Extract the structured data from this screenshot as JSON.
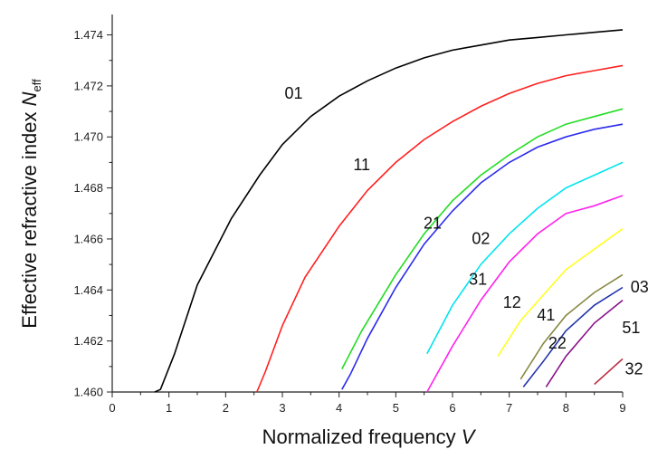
{
  "chart_data": {
    "type": "line",
    "title": "",
    "xlabel": {
      "main": "Normalized frequency ",
      "var": "V"
    },
    "ylabel": {
      "main": "Effective refractive index ",
      "var": "N",
      "sub": "eff"
    },
    "xlim": [
      0,
      9
    ],
    "ylim": [
      1.46,
      1.4748
    ],
    "x_ticks": [
      "0",
      "1",
      "2",
      "3",
      "4",
      "5",
      "6",
      "7",
      "8",
      "9"
    ],
    "y_ticks": [
      "1.460",
      "1.462",
      "1.464",
      "1.466",
      "1.468",
      "1.470",
      "1.472",
      "1.474"
    ],
    "grid": false,
    "legend": "none",
    "series": [
      {
        "name": "01",
        "color": "#000000",
        "label_pos": [
          3.2,
          1.4715
        ],
        "points": [
          [
            0.75,
            1.46
          ],
          [
            0.85,
            1.4601
          ],
          [
            1.1,
            1.4615
          ],
          [
            1.5,
            1.4642
          ],
          [
            2.1,
            1.4668
          ],
          [
            2.6,
            1.4685
          ],
          [
            3.0,
            1.4697
          ],
          [
            3.5,
            1.4708
          ],
          [
            4.0,
            1.4716
          ],
          [
            4.5,
            1.4722
          ],
          [
            5.0,
            1.4727
          ],
          [
            5.5,
            1.4731
          ],
          [
            6.0,
            1.4734
          ],
          [
            6.5,
            1.4736
          ],
          [
            7.0,
            1.4738
          ],
          [
            7.5,
            1.4739
          ],
          [
            8.0,
            1.474
          ],
          [
            8.5,
            1.4741
          ],
          [
            9.0,
            1.4742
          ]
        ]
      },
      {
        "name": "11",
        "color": "#ff2020",
        "label_pos": [
          4.4,
          1.4687
        ],
        "points": [
          [
            2.55,
            1.46
          ],
          [
            2.7,
            1.4608
          ],
          [
            3.0,
            1.4626
          ],
          [
            3.4,
            1.4645
          ],
          [
            4.0,
            1.4665
          ],
          [
            4.5,
            1.4679
          ],
          [
            5.0,
            1.469
          ],
          [
            5.5,
            1.4699
          ],
          [
            6.0,
            1.4706
          ],
          [
            6.5,
            1.4712
          ],
          [
            7.0,
            1.4717
          ],
          [
            7.5,
            1.4721
          ],
          [
            8.0,
            1.4724
          ],
          [
            8.5,
            1.4726
          ],
          [
            9.0,
            1.4728
          ]
        ]
      },
      {
        "name": "21",
        "color": "#22dd22",
        "label_pos": [
          5.65,
          1.4664
        ],
        "points": [
          [
            4.05,
            1.4609
          ],
          [
            4.4,
            1.4624
          ],
          [
            5.0,
            1.4646
          ],
          [
            5.5,
            1.4662
          ],
          [
            6.0,
            1.4675
          ],
          [
            6.5,
            1.4685
          ],
          [
            7.0,
            1.4693
          ],
          [
            7.5,
            1.47
          ],
          [
            8.0,
            1.4705
          ],
          [
            8.5,
            1.4708
          ],
          [
            9.0,
            1.4711
          ]
        ]
      },
      {
        "name": "02",
        "color": "#2b2bee",
        "label_pos": [
          6.5,
          1.4658
        ],
        "points": [
          [
            4.05,
            1.4601
          ],
          [
            4.2,
            1.4607
          ],
          [
            4.5,
            1.4621
          ],
          [
            5.0,
            1.4641
          ],
          [
            5.5,
            1.4658
          ],
          [
            6.0,
            1.4671
          ],
          [
            6.5,
            1.4682
          ],
          [
            7.0,
            1.469
          ],
          [
            7.5,
            1.4696
          ],
          [
            8.0,
            1.47
          ],
          [
            8.5,
            1.4703
          ],
          [
            9.0,
            1.4705
          ]
        ]
      },
      {
        "name": "31",
        "color": "#00e5ee",
        "label_pos": [
          6.45,
          1.4642
        ],
        "points": [
          [
            5.55,
            1.4615
          ],
          [
            6.0,
            1.4634
          ],
          [
            6.5,
            1.465
          ],
          [
            7.0,
            1.4662
          ],
          [
            7.5,
            1.4672
          ],
          [
            8.0,
            1.468
          ],
          [
            8.5,
            1.4685
          ],
          [
            9.0,
            1.469
          ]
        ]
      },
      {
        "name": "12",
        "color": "#ff22ee",
        "label_pos": [
          7.05,
          1.4633
        ],
        "points": [
          [
            5.55,
            1.46
          ],
          [
            6.0,
            1.4618
          ],
          [
            6.5,
            1.4636
          ],
          [
            7.0,
            1.4651
          ],
          [
            7.5,
            1.4662
          ],
          [
            8.0,
            1.467
          ],
          [
            8.5,
            1.4673
          ],
          [
            9.0,
            1.4677
          ]
        ]
      },
      {
        "name": "41",
        "color": "#ffff22",
        "label_pos": [
          7.65,
          1.4628
        ],
        "points": [
          [
            6.8,
            1.4614
          ],
          [
            7.2,
            1.4628
          ],
          [
            7.6,
            1.4638
          ],
          [
            8.0,
            1.4648
          ],
          [
            8.5,
            1.4656
          ],
          [
            9.0,
            1.4664
          ]
        ]
      },
      {
        "name": "22",
        "color": "#888844",
        "label_pos": [
          7.85,
          1.4617
        ],
        "points": [
          [
            7.2,
            1.4605
          ],
          [
            7.6,
            1.4619
          ],
          [
            8.0,
            1.463
          ],
          [
            8.5,
            1.4639
          ],
          [
            9.0,
            1.4646
          ]
        ]
      },
      {
        "name": "03",
        "color": "#2233aa",
        "label_pos": [
          9.3,
          1.4639
        ],
        "points": [
          [
            7.25,
            1.4602
          ],
          [
            7.6,
            1.4612
          ],
          [
            8.0,
            1.4624
          ],
          [
            8.5,
            1.4634
          ],
          [
            9.0,
            1.4641
          ]
        ]
      },
      {
        "name": "51",
        "color": "#881188",
        "label_pos": [
          9.15,
          1.4623
        ],
        "points": [
          [
            7.65,
            1.4602
          ],
          [
            8.0,
            1.4614
          ],
          [
            8.5,
            1.4627
          ],
          [
            9.0,
            1.4636
          ]
        ]
      },
      {
        "name": "32",
        "color": "#bb3344",
        "label_pos": [
          9.2,
          1.4607
        ],
        "points": [
          [
            8.5,
            1.4603
          ],
          [
            8.75,
            1.4608
          ],
          [
            9.0,
            1.4613
          ]
        ]
      }
    ]
  }
}
